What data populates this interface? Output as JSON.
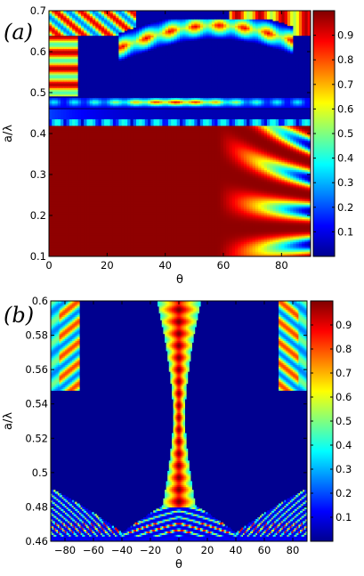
{
  "chart_data": [
    {
      "type": "heatmap",
      "panel_label": "(a)",
      "xlabel": "θ",
      "ylabel": "a/λ",
      "xlim": [
        0,
        90
      ],
      "ylim": [
        0.1,
        0.7
      ],
      "x_ticks": [
        0,
        20,
        40,
        60,
        80
      ],
      "x_tick_labels": [
        "0",
        "20",
        "40",
        "60",
        "80"
      ],
      "y_ticks": [
        0.1,
        0.2,
        0.3,
        0.4,
        0.5,
        0.6,
        0.7
      ],
      "y_tick_labels": [
        "0.1",
        "0.2",
        "0.3",
        "0.4",
        "0.5",
        "0.6",
        "0.7"
      ],
      "colorbar_range": [
        0,
        1
      ],
      "colorbar_ticks": [
        0.1,
        0.2,
        0.3,
        0.4,
        0.5,
        0.6,
        0.7,
        0.8,
        0.9
      ],
      "colorbar_tick_labels": [
        "0.1",
        "0.2",
        "0.3",
        "0.4",
        "0.5",
        "0.6",
        "0.7",
        "0.8",
        "0.9"
      ],
      "colormap": "jet",
      "grid": false
    },
    {
      "type": "heatmap",
      "panel_label": "(b)",
      "xlabel": "θ",
      "ylabel": "a/λ",
      "xlim": [
        -90,
        90
      ],
      "ylim": [
        0.46,
        0.6
      ],
      "x_ticks": [
        -80,
        -60,
        -40,
        -20,
        0,
        20,
        40,
        60,
        80
      ],
      "x_tick_labels": [
        "−80",
        "−60",
        "−40",
        "−20",
        "0",
        "20",
        "40",
        "60",
        "80"
      ],
      "y_ticks": [
        0.46,
        0.48,
        0.5,
        0.52,
        0.54,
        0.56,
        0.58,
        0.6
      ],
      "y_tick_labels": [
        "0.46",
        "0.48",
        "0.5",
        "0.52",
        "0.54",
        "0.56",
        "0.58",
        "0.6"
      ],
      "colorbar_range": [
        0,
        1
      ],
      "colorbar_ticks": [
        0.1,
        0.2,
        0.3,
        0.4,
        0.5,
        0.6,
        0.7,
        0.8,
        0.9
      ],
      "colorbar_tick_labels": [
        "0.1",
        "0.2",
        "0.3",
        "0.4",
        "0.5",
        "0.6",
        "0.7",
        "0.8",
        "0.9"
      ],
      "colormap": "jet",
      "grid": false
    }
  ],
  "colors": {
    "jet_stops": [
      "#00008f",
      "#0000ff",
      "#00ffff",
      "#ffff00",
      "#ff0000",
      "#800000"
    ],
    "background_low": "#00008f",
    "background_high": "#7f0000"
  }
}
